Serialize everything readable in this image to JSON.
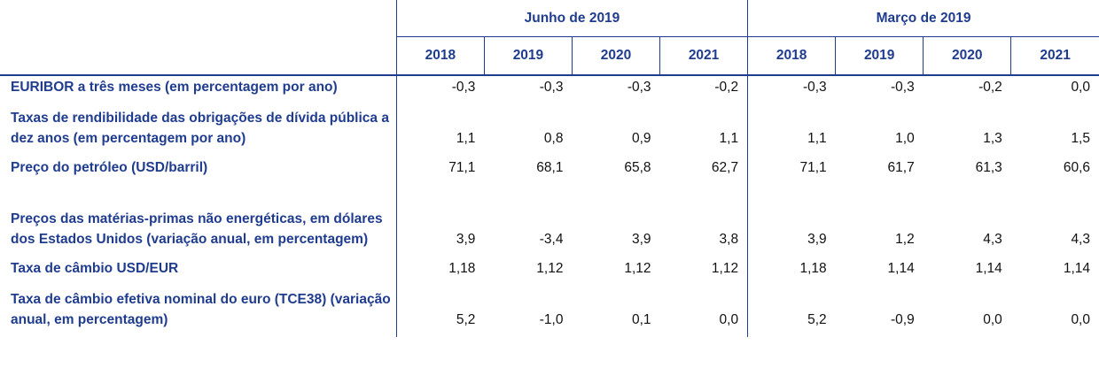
{
  "header": {
    "groups": [
      "Junho de 2019",
      "Março de 2019"
    ],
    "years": [
      "2018",
      "2019",
      "2020",
      "2021",
      "2018",
      "2019",
      "2020",
      "2021"
    ]
  },
  "rows": [
    {
      "label": "EURIBOR a três meses (em percentagem por ano)",
      "values": [
        "-0,3",
        "-0,3",
        "-0,3",
        "-0,2",
        "-0,3",
        "-0,3",
        "-0,2",
        "0,0"
      ]
    },
    {
      "label": "Taxas de rendibilidade das obrigações de dívida pública a dez anos (em percentagem por ano)",
      "values": [
        "1,1",
        "0,8",
        "0,9",
        "1,1",
        "1,1",
        "1,0",
        "1,3",
        "1,5"
      ]
    },
    {
      "label": "Preço do petróleo (USD/barril)",
      "values": [
        "71,1",
        "68,1",
        "65,8",
        "62,7",
        "71,1",
        "61,7",
        "61,3",
        "60,6"
      ]
    },
    {
      "label": "Preços das matérias-primas não energéticas, em dólares dos Estados Unidos (variação anual, em percentagem)",
      "values": [
        "3,9",
        "-3,4",
        "3,9",
        "3,8",
        "3,9",
        "1,2",
        "4,3",
        "4,3"
      ]
    },
    {
      "label": "Taxa de câmbio USD/EUR",
      "values": [
        "1,18",
        "1,12",
        "1,12",
        "1,12",
        "1,18",
        "1,14",
        "1,14",
        "1,14"
      ]
    },
    {
      "label": "Taxa de câmbio efetiva nominal do euro (TCE38) (variação anual, em percentagem)",
      "values": [
        "5,2",
        "-1,0",
        "0,1",
        "0,0",
        "5,2",
        "-0,9",
        "0,0",
        "0,0"
      ]
    }
  ]
}
